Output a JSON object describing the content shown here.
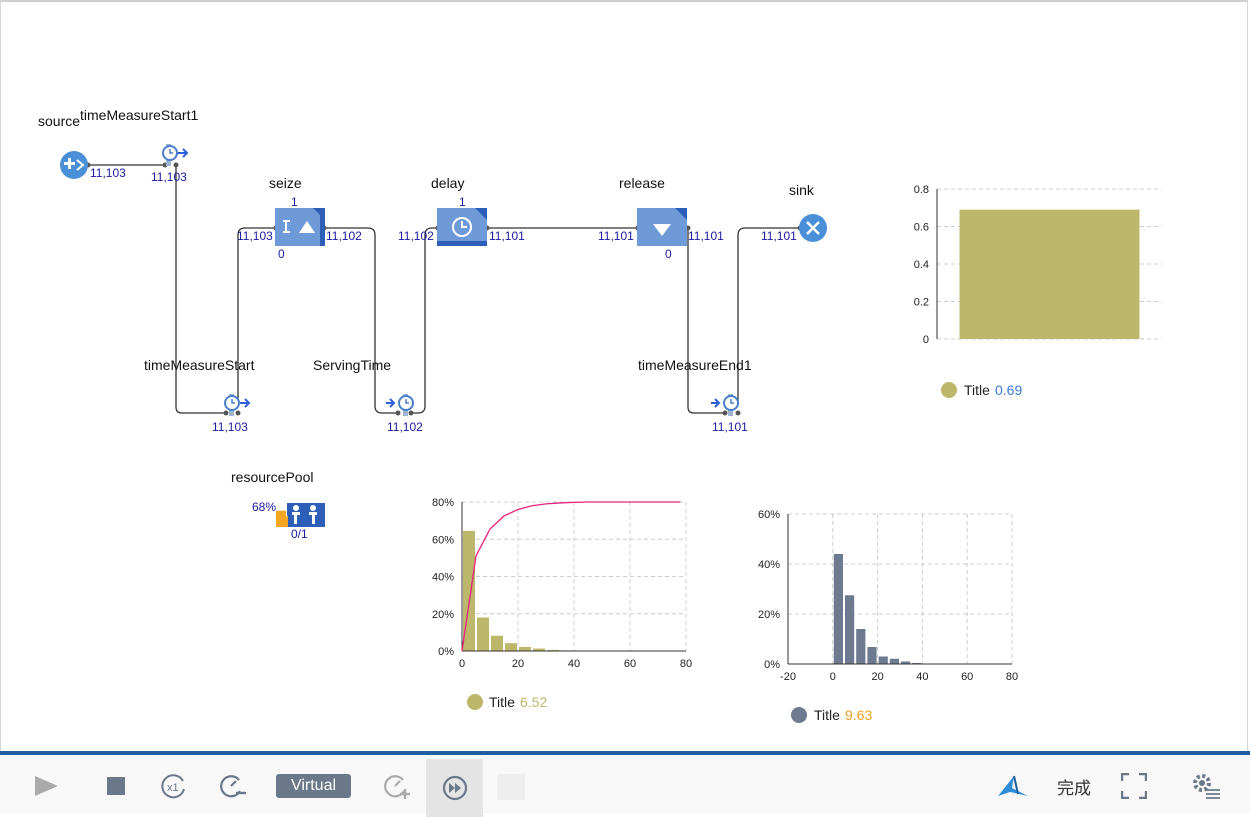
{
  "blocks": {
    "source": {
      "label": "source",
      "count": "11,103"
    },
    "timeMeasureStart1": {
      "label": "timeMeasureStart1",
      "count": "11,103"
    },
    "seize": {
      "label": "seize",
      "top": "1",
      "bottom": "0",
      "left_count": "11,103",
      "right_count": "11,102"
    },
    "delay": {
      "label": "delay",
      "top": "1",
      "left_count": "11,102",
      "right_count": "11,101"
    },
    "release": {
      "label": "release",
      "bottom": "0",
      "left_count": "11,101",
      "right_count": "11,101"
    },
    "sink": {
      "label": "sink",
      "count": "11,101"
    },
    "timeMeasureStart": {
      "label": "timeMeasureStart",
      "count": "11,103"
    },
    "servingTime": {
      "label": "ServingTime",
      "count": "11,102"
    },
    "timeMeasureEnd1": {
      "label": "timeMeasureEnd1",
      "count": "11,101"
    },
    "resourcePool": {
      "label": "resourcePool",
      "utilization": "68%",
      "utilization_value": 0.68,
      "count": "0/1"
    }
  },
  "colors": {
    "block_blue": "#6f9ad8",
    "block_dark": "#2e5fb8",
    "counter_blue": "#1a1aa0",
    "bar_olive": "#bdb76b",
    "bar_slate": "#6d7a8f",
    "cdf_pink": "#e8207e",
    "legend_value_blue": "#3a7bd5",
    "legend_value_orange": "#e8a020",
    "pool_orange": "#f5a623",
    "toolbar_blue": "#1f5fa0"
  },
  "chart_data": [
    {
      "type": "bar",
      "categories": [
        ""
      ],
      "values": [
        0.69
      ],
      "ylim": [
        0,
        0.8
      ],
      "yticks": [
        "0",
        "0.2",
        "0.4",
        "0.6",
        "0.8"
      ],
      "grid": true,
      "legend": {
        "name": "Title",
        "value": "0.69"
      }
    },
    {
      "type": "bar",
      "x": [
        2.5,
        7.5,
        12.5,
        17.5,
        22.5,
        27.5,
        32.5,
        37.5
      ],
      "values": [
        0.645,
        0.18,
        0.082,
        0.042,
        0.022,
        0.013,
        0.006,
        0.003
      ],
      "bin_width": 5,
      "xlim": [
        0,
        80
      ],
      "ylim": [
        0,
        0.8
      ],
      "xticks": [
        "0",
        "20",
        "40",
        "60",
        "80"
      ],
      "yticks": [
        "0%",
        "20%",
        "40%",
        "60%",
        "80%"
      ],
      "cdf": {
        "x": [
          0,
          5,
          10,
          15,
          20,
          25,
          30,
          35,
          40,
          45,
          50,
          60,
          70,
          78
        ],
        "y": [
          0,
          0.51,
          0.655,
          0.725,
          0.76,
          0.78,
          0.79,
          0.795,
          0.798,
          0.8,
          0.8,
          0.8,
          0.8,
          0.8
        ]
      },
      "grid": true,
      "legend": {
        "name": "Title",
        "value": "6.52"
      }
    },
    {
      "type": "bar",
      "x": [
        2.5,
        7.5,
        12.5,
        17.5,
        22.5,
        27.5,
        32.5,
        37.5,
        42.5,
        47.5
      ],
      "values": [
        0.44,
        0.275,
        0.14,
        0.068,
        0.03,
        0.021,
        0.01,
        0.004,
        0.002,
        0.001
      ],
      "bin_width": 5,
      "xlim": [
        -20,
        80
      ],
      "ylim": [
        0,
        0.6
      ],
      "xticks": [
        "-20",
        "0",
        "20",
        "40",
        "60",
        "80"
      ],
      "yticks": [
        "0%",
        "20%",
        "40%",
        "60%"
      ],
      "grid": true,
      "legend": {
        "name": "Title",
        "value": "9.63"
      }
    }
  ],
  "toolbar": {
    "virtual_label": "Virtual",
    "done_label": "完成",
    "icons": [
      "play-icon",
      "stop-icon",
      "speed-x1-icon",
      "slow-down-icon",
      "speed-up-icon",
      "fast-forward-icon",
      "app-logo-icon",
      "fullscreen-icon",
      "settings-icon"
    ]
  }
}
